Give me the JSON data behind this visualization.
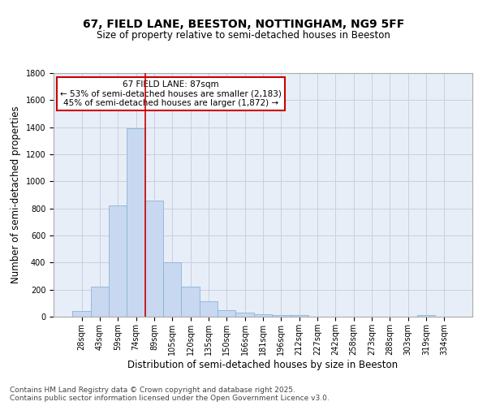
{
  "title_line1": "67, FIELD LANE, BEESTON, NOTTINGHAM, NG9 5FF",
  "title_line2": "Size of property relative to semi-detached houses in Beeston",
  "xlabel": "Distribution of semi-detached houses by size in Beeston",
  "ylabel": "Number of semi-detached properties",
  "categories": [
    "28sqm",
    "43sqm",
    "59sqm",
    "74sqm",
    "89sqm",
    "105sqm",
    "120sqm",
    "135sqm",
    "150sqm",
    "166sqm",
    "181sqm",
    "196sqm",
    "212sqm",
    "227sqm",
    "242sqm",
    "258sqm",
    "273sqm",
    "288sqm",
    "303sqm",
    "319sqm",
    "334sqm"
  ],
  "values": [
    45,
    225,
    820,
    1390,
    860,
    400,
    225,
    115,
    50,
    30,
    20,
    15,
    10,
    0,
    0,
    0,
    0,
    0,
    0,
    12,
    0
  ],
  "bar_color": "#c8d8f0",
  "bar_edge_color": "#8ab4d8",
  "vline_pos": 3.5,
  "vline_color": "#cc0000",
  "annotation_title": "67 FIELD LANE: 87sqm",
  "annotation_line1": "← 53% of semi-detached houses are smaller (2,183)",
  "annotation_line2": "45% of semi-detached houses are larger (1,872) →",
  "annotation_box_edgecolor": "#cc0000",
  "background_color": "#e8eef8",
  "grid_color": "#c8d0e0",
  "ylim": [
    0,
    1800
  ],
  "yticks": [
    0,
    200,
    400,
    600,
    800,
    1000,
    1200,
    1400,
    1600,
    1800
  ],
  "title1_fontsize": 10,
  "title2_fontsize": 8.5,
  "xlabel_fontsize": 8.5,
  "ylabel_fontsize": 8.5,
  "tick_fontsize": 7,
  "annotation_fontsize": 7.5,
  "footer_line1": "Contains HM Land Registry data © Crown copyright and database right 2025.",
  "footer_line2": "Contains public sector information licensed under the Open Government Licence v3.0.",
  "footer_fontsize": 6.5
}
